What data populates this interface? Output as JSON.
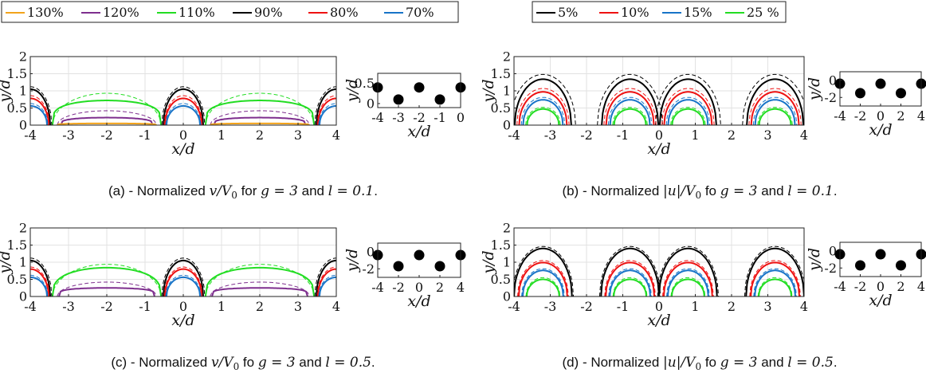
{
  "legends": [
    {
      "entries": [
        {
          "label": "130%",
          "color": "#f2a31b"
        },
        {
          "label": "120%",
          "color": "#7e2f8e"
        },
        {
          "label": "110%",
          "color": "#22dd22"
        },
        {
          "label": "90%",
          "color": "#000000"
        },
        {
          "label": "80%",
          "color": "#ee1111"
        },
        {
          "label": "70%",
          "color": "#1874c8"
        }
      ]
    },
    {
      "entries": [
        {
          "label": "5%",
          "color": "#000000"
        },
        {
          "label": "10%",
          "color": "#ee1111"
        },
        {
          "label": "15%",
          "color": "#1874c8"
        },
        {
          "label": "25 %",
          "color": "#22dd22"
        }
      ]
    }
  ],
  "chart_data": [
    {
      "id": "a",
      "type": "line",
      "caption": {
        "prefix": "(a) - Normalized ",
        "math": "v/V",
        "sub": "0",
        "mid": " for ",
        "g": "g = 3",
        "and": " and ",
        "l": "l = 0.1",
        "end": "."
      },
      "xlabel": "x/d",
      "ylabel": "y/d",
      "xlim": [
        -4,
        4
      ],
      "ylim": [
        0,
        2
      ],
      "xticks": [
        "-4",
        "-3",
        "-2",
        "-1",
        "0",
        "1",
        "2",
        "3",
        "4"
      ],
      "yticks": [
        "0",
        "0.5",
        "1",
        "1.5",
        "2"
      ],
      "series": [
        {
          "color": "#22dd22",
          "kind": "hump",
          "centers": [
            -2,
            2
          ],
          "half": 1.42,
          "peak": 0.72,
          "flat": 4
        },
        {
          "color": "#22dd22",
          "kind": "hump",
          "centers": [
            -2,
            2
          ],
          "half": 1.42,
          "peak": 0.93,
          "flat": 2,
          "dashed": true
        },
        {
          "color": "#7e2f8e",
          "kind": "hump",
          "centers": [
            -2,
            2
          ],
          "half": 1.2,
          "peak": 0.22,
          "flat": 4
        },
        {
          "color": "#7e2f8e",
          "kind": "hump",
          "centers": [
            -2,
            2
          ],
          "half": 1.3,
          "peak": 0.42,
          "flat": 2,
          "dashed": true
        },
        {
          "color": "#f2a31b",
          "kind": "hump",
          "centers": [
            -2,
            2
          ],
          "half": 1.3,
          "peak": 0.05,
          "flat": 4
        },
        {
          "color": "#000000",
          "kind": "dome",
          "centers": [
            -4,
            0,
            4
          ],
          "half": 0.52,
          "peak": 1.05
        },
        {
          "color": "#000000",
          "kind": "dome",
          "centers": [
            -4,
            0,
            4
          ],
          "half": 0.56,
          "peak": 1.12,
          "dashed": true
        },
        {
          "color": "#ee1111",
          "kind": "dome",
          "centers": [
            -4,
            0,
            4
          ],
          "half": 0.48,
          "peak": 0.78
        },
        {
          "color": "#ee1111",
          "kind": "dome",
          "centers": [
            -4,
            0,
            4
          ],
          "half": 0.5,
          "peak": 0.86,
          "dashed": true
        },
        {
          "color": "#1874c8",
          "kind": "dome",
          "centers": [
            -4,
            0,
            4
          ],
          "half": 0.44,
          "peak": 0.56
        },
        {
          "color": "#1874c8",
          "kind": "dome",
          "centers": [
            -4,
            0,
            4
          ],
          "half": 0.46,
          "peak": 0.63,
          "dashed": true
        }
      ],
      "inset": {
        "xlabel": "x/d",
        "ylabel": "y/d",
        "xlim": [
          -4,
          0
        ],
        "ylim": [
          -0.1,
          0.75
        ],
        "xticks": [
          "-4",
          "-3",
          "-2",
          "-1",
          "0"
        ],
        "yticks": [
          "0",
          "0.5"
        ],
        "points": [
          {
            "x": -4,
            "y": 0.4
          },
          {
            "x": -3,
            "y": 0.1
          },
          {
            "x": -2,
            "y": 0.4
          },
          {
            "x": -1,
            "y": 0.1
          },
          {
            "x": 0,
            "y": 0.4
          }
        ]
      }
    },
    {
      "id": "b",
      "type": "line",
      "caption": {
        "prefix": "(b) - Normalized ",
        "math": "|u|/V",
        "sub": "0",
        "mid": " fo ",
        "g": "g = 3",
        "and": " and ",
        "l": "l = 0.1",
        "end": "."
      },
      "xlabel": "x/d",
      "ylabel": "y/d",
      "xlim": [
        -4,
        4
      ],
      "ylim": [
        0,
        2
      ],
      "xticks": [
        "-4",
        "-3",
        "-2",
        "-1",
        "0",
        "1",
        "2",
        "3",
        "4"
      ],
      "yticks": [
        "0",
        "0.5",
        "1",
        "1.5",
        "2"
      ],
      "series": [
        {
          "color": "#000000",
          "kind": "dome",
          "centers": [
            -3.2,
            -0.8,
            0.8,
            3.2
          ],
          "half": 0.78,
          "peak": 1.34
        },
        {
          "color": "#000000",
          "kind": "dome",
          "centers": [
            -3.2,
            -0.8,
            0.8,
            3.2
          ],
          "half": 0.9,
          "peak": 1.48,
          "dashed": true
        },
        {
          "color": "#ee1111",
          "kind": "dome",
          "centers": [
            -3.2,
            -0.8,
            0.8,
            3.2
          ],
          "half": 0.66,
          "peak": 0.97
        },
        {
          "color": "#ee1111",
          "kind": "dome",
          "centers": [
            -3.2,
            -0.8,
            0.8,
            3.2
          ],
          "half": 0.72,
          "peak": 1.07,
          "dashed": true
        },
        {
          "color": "#1874c8",
          "kind": "dome",
          "centers": [
            -3.2,
            -0.8,
            0.8,
            3.2
          ],
          "half": 0.55,
          "peak": 0.74
        },
        {
          "color": "#1874c8",
          "kind": "dome",
          "centers": [
            -3.2,
            -0.8,
            0.8,
            3.2
          ],
          "half": 0.6,
          "peak": 0.81,
          "dashed": true
        },
        {
          "color": "#22dd22",
          "kind": "dome",
          "centers": [
            -3.2,
            -0.8,
            0.8,
            3.2
          ],
          "half": 0.44,
          "peak": 0.47
        },
        {
          "color": "#22dd22",
          "kind": "dome",
          "centers": [
            -3.2,
            -0.8,
            0.8,
            3.2
          ],
          "half": 0.48,
          "peak": 0.52,
          "dashed": true
        }
      ],
      "inset": {
        "xlabel": "x/d",
        "ylabel": "y/d",
        "xlim": [
          -4,
          4
        ],
        "ylim": [
          -3,
          1
        ],
        "xticks": [
          "-4",
          "-2",
          "0",
          "2",
          "4"
        ],
        "yticks": [
          "-2",
          "0"
        ],
        "points": [
          {
            "x": -4,
            "y": -0.4
          },
          {
            "x": -2,
            "y": -1.5
          },
          {
            "x": 0,
            "y": -0.4
          },
          {
            "x": 2,
            "y": -1.5
          },
          {
            "x": 4,
            "y": -0.4
          }
        ]
      }
    },
    {
      "id": "c",
      "type": "line",
      "caption": {
        "prefix": "(c) - Normalized ",
        "math": "v/V",
        "sub": "0",
        "mid": " fo ",
        "g": "g = 3",
        "and": " and ",
        "l": "l = 0.5",
        "end": "."
      },
      "xlabel": "x/d",
      "ylabel": "y/d",
      "xlim": [
        -4,
        4
      ],
      "ylim": [
        0,
        2
      ],
      "xticks": [
        "-4",
        "-3",
        "-2",
        "-1",
        "0",
        "1",
        "2",
        "3",
        "4"
      ],
      "yticks": [
        "0",
        "0.5",
        "1",
        "1.5",
        "2"
      ],
      "series": [
        {
          "color": "#22dd22",
          "kind": "hump",
          "centers": [
            -2,
            2
          ],
          "half": 1.42,
          "peak": 0.84,
          "flat": 3
        },
        {
          "color": "#22dd22",
          "kind": "hump",
          "centers": [
            -2,
            2
          ],
          "half": 1.42,
          "peak": 0.94,
          "flat": 2,
          "dashed": true
        },
        {
          "color": "#7e2f8e",
          "kind": "hump",
          "centers": [
            -2,
            2
          ],
          "half": 1.25,
          "peak": 0.25,
          "flat": 5
        },
        {
          "color": "#7e2f8e",
          "kind": "hump",
          "centers": [
            -2,
            2
          ],
          "half": 1.3,
          "peak": 0.42,
          "flat": 2,
          "dashed": true
        },
        {
          "color": "#000000",
          "kind": "dome",
          "centers": [
            -4,
            0,
            4
          ],
          "half": 0.52,
          "peak": 1.05
        },
        {
          "color": "#000000",
          "kind": "dome",
          "centers": [
            -4,
            0,
            4
          ],
          "half": 0.56,
          "peak": 1.12,
          "dashed": true
        },
        {
          "color": "#ee1111",
          "kind": "dome",
          "centers": [
            -4,
            0,
            4
          ],
          "half": 0.48,
          "peak": 0.8
        },
        {
          "color": "#ee1111",
          "kind": "dome",
          "centers": [
            -4,
            0,
            4
          ],
          "half": 0.5,
          "peak": 0.86,
          "dashed": true
        },
        {
          "color": "#1874c8",
          "kind": "dome",
          "centers": [
            -4,
            0,
            4
          ],
          "half": 0.44,
          "peak": 0.56
        },
        {
          "color": "#1874c8",
          "kind": "dome",
          "centers": [
            -4,
            0,
            4
          ],
          "half": 0.46,
          "peak": 0.62,
          "dashed": true
        }
      ],
      "inset": {
        "xlabel": "x/d",
        "ylabel": "y/d",
        "xlim": [
          -4,
          4
        ],
        "ylim": [
          -3,
          1
        ],
        "xticks": [
          "-4",
          "-2",
          "0",
          "2",
          "4"
        ],
        "yticks": [
          "-2",
          "0"
        ],
        "points": [
          {
            "x": -4,
            "y": -0.4
          },
          {
            "x": -2,
            "y": -1.7
          },
          {
            "x": 0,
            "y": -0.4
          },
          {
            "x": 2,
            "y": -1.7
          },
          {
            "x": 4,
            "y": -0.4
          }
        ]
      }
    },
    {
      "id": "d",
      "type": "line",
      "caption": {
        "prefix": "(d) - Normalized ",
        "math": "|u|/V",
        "sub": "0",
        "mid": " fo ",
        "g": "g = 3",
        "and": " and ",
        "l": "l = 0.5",
        "end": "."
      },
      "xlabel": "x/d",
      "ylabel": "y/d",
      "xlim": [
        -4,
        4
      ],
      "ylim": [
        0,
        2
      ],
      "xticks": [
        "-4",
        "-3",
        "-2",
        "-1",
        "0",
        "1",
        "2",
        "3",
        "4"
      ],
      "yticks": [
        "0",
        "0.5",
        "1",
        "1.5",
        "2"
      ],
      "series": [
        {
          "color": "#000000",
          "kind": "dome",
          "centers": [
            -3.2,
            -0.8,
            0.8,
            3.2
          ],
          "half": 0.8,
          "peak": 1.4
        },
        {
          "color": "#000000",
          "kind": "dome",
          "centers": [
            -3.2,
            -0.8,
            0.8,
            3.2
          ],
          "half": 0.84,
          "peak": 1.46,
          "dashed": true
        },
        {
          "color": "#ee1111",
          "kind": "dome",
          "centers": [
            -3.2,
            -0.8,
            0.8,
            3.2
          ],
          "half": 0.67,
          "peak": 0.99
        },
        {
          "color": "#ee1111",
          "kind": "dome",
          "centers": [
            -3.2,
            -0.8,
            0.8,
            3.2
          ],
          "half": 0.7,
          "peak": 1.05,
          "dashed": true
        },
        {
          "color": "#1874c8",
          "kind": "dome",
          "centers": [
            -3.2,
            -0.8,
            0.8,
            3.2
          ],
          "half": 0.56,
          "peak": 0.76
        },
        {
          "color": "#1874c8",
          "kind": "dome",
          "centers": [
            -3.2,
            -0.8,
            0.8,
            3.2
          ],
          "half": 0.59,
          "peak": 0.81,
          "dashed": true
        },
        {
          "color": "#22dd22",
          "kind": "dome",
          "centers": [
            -3.2,
            -0.8,
            0.8,
            3.2
          ],
          "half": 0.45,
          "peak": 0.5
        },
        {
          "color": "#22dd22",
          "kind": "dome",
          "centers": [
            -3.2,
            -0.8,
            0.8,
            3.2
          ],
          "half": 0.47,
          "peak": 0.55,
          "dashed": true
        }
      ],
      "inset": {
        "xlabel": "x/d",
        "ylabel": "y/d",
        "xlim": [
          -4,
          4
        ],
        "ylim": [
          -3,
          1
        ],
        "xticks": [
          "-4",
          "-2",
          "0",
          "2",
          "4"
        ],
        "yticks": [
          "-2",
          "0"
        ],
        "points": [
          {
            "x": -4,
            "y": -0.4
          },
          {
            "x": -2,
            "y": -1.7
          },
          {
            "x": 0,
            "y": -0.4
          },
          {
            "x": 2,
            "y": -1.7
          },
          {
            "x": 4,
            "y": -0.4
          }
        ]
      }
    }
  ]
}
